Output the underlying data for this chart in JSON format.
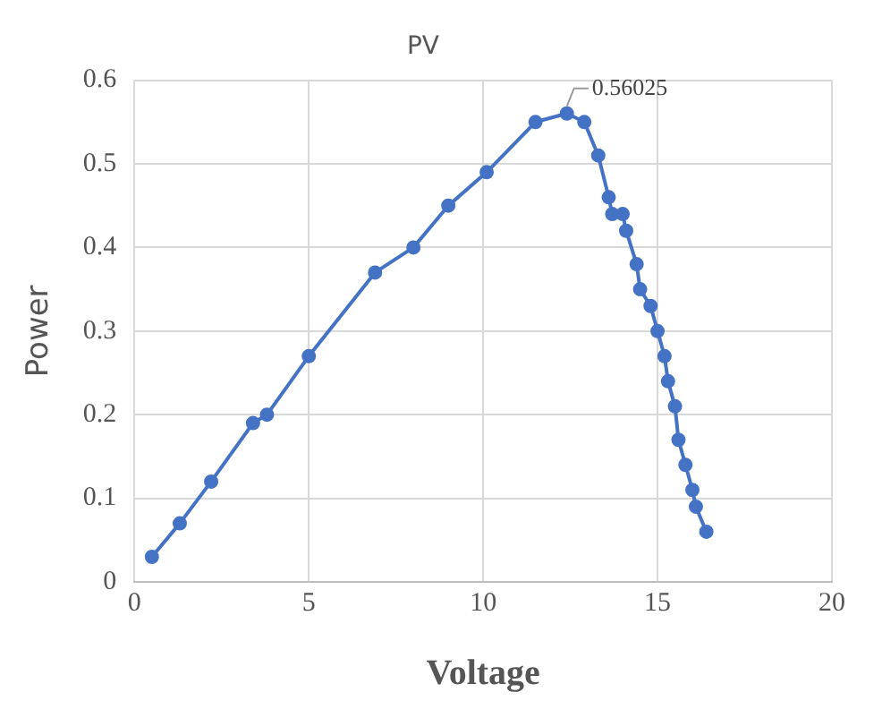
{
  "chart_data": {
    "type": "line",
    "title": "PV",
    "xlabel": "Voltage",
    "ylabel": "Power",
    "x": [
      0.5,
      1.3,
      2.2,
      3.4,
      3.8,
      5.0,
      6.9,
      8.0,
      9.0,
      10.1,
      11.5,
      12.4,
      12.9,
      13.3,
      13.6,
      13.7,
      14.0,
      14.1,
      14.4,
      14.5,
      14.8,
      15.0,
      15.2,
      15.3,
      15.5,
      15.6,
      15.8,
      16.0,
      16.1,
      16.4
    ],
    "series": [
      {
        "color": "#4472c4",
        "values": [
          0.03,
          0.07,
          0.12,
          0.19,
          0.2,
          0.27,
          0.37,
          0.4,
          0.45,
          0.49,
          0.55,
          0.56025,
          0.55,
          0.51,
          0.46,
          0.44,
          0.44,
          0.42,
          0.38,
          0.35,
          0.33,
          0.3,
          0.27,
          0.24,
          0.21,
          0.17,
          0.14,
          0.11,
          0.09,
          0.06
        ]
      }
    ],
    "annotations": [
      {
        "text": "0.56025",
        "x": 12.4,
        "y": 0.56025
      }
    ],
    "xlim": [
      0,
      20
    ],
    "xticks": [
      0,
      5,
      10,
      15,
      20
    ],
    "ylim": [
      0,
      0.6
    ],
    "yticks": [
      0,
      0.1,
      0.2,
      0.3,
      0.4,
      0.5,
      0.6
    ],
    "grid": true,
    "marker": "circle",
    "line_style": "solid",
    "legend": false
  }
}
